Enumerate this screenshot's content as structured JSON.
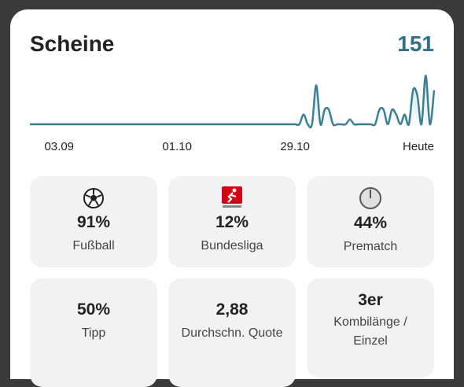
{
  "header": {
    "title": "Scheine",
    "total": "151"
  },
  "chart_data": {
    "type": "line",
    "categories": [
      null,
      null,
      null,
      null,
      null,
      null,
      null,
      "03.09",
      null,
      null,
      null,
      null,
      null,
      null,
      null,
      null,
      null,
      null,
      null,
      null,
      null,
      null,
      null,
      null,
      null,
      null,
      null,
      null,
      null,
      null,
      null,
      null,
      null,
      null,
      null,
      "01.10",
      null,
      null,
      null,
      null,
      null,
      null,
      null,
      null,
      null,
      null,
      null,
      null,
      null,
      null,
      null,
      null,
      null,
      null,
      null,
      null,
      null,
      null,
      null,
      null,
      null,
      null,
      null,
      "29.10",
      null,
      null,
      null,
      null,
      null,
      null,
      null,
      null,
      null,
      null,
      null,
      null,
      null,
      null,
      null,
      null,
      null,
      null,
      null,
      null,
      null,
      null,
      null,
      null,
      null,
      null,
      null,
      null,
      null,
      null,
      null,
      null,
      "Heute"
    ],
    "values": [
      0,
      0,
      0,
      0,
      0,
      0,
      0,
      0,
      0,
      0,
      0,
      0,
      0,
      0,
      0,
      0,
      0,
      0,
      0,
      0,
      0,
      0,
      0,
      0,
      0,
      0,
      0,
      0,
      0,
      0,
      0,
      0,
      0,
      0,
      0,
      0,
      0,
      0,
      0,
      0,
      0,
      0,
      0,
      0,
      0,
      0,
      0,
      0,
      0,
      0,
      0,
      0,
      0,
      0,
      0,
      0,
      0,
      0,
      0,
      0,
      0,
      0,
      0,
      0,
      0,
      2,
      0,
      0,
      8,
      0,
      3,
      3,
      0,
      0,
      0,
      0,
      1,
      0,
      0,
      0,
      0,
      0,
      0,
      3,
      3,
      0,
      3,
      2,
      0,
      2,
      0,
      7,
      6,
      0,
      10,
      0,
      7
    ],
    "color": "#3b7f96",
    "ylim": [
      0,
      11
    ]
  },
  "tiles": [
    {
      "value": "91%",
      "label": "Fußball"
    },
    {
      "value": "12%",
      "label": "Bundesliga"
    },
    {
      "value": "44%",
      "label": "Prematch"
    },
    {
      "value": "50%",
      "label": "Tipp"
    },
    {
      "value": "2,88",
      "label": "Durchschn. Quote"
    },
    {
      "value": "3er",
      "label": "Kombilänge / Einzel"
    }
  ]
}
